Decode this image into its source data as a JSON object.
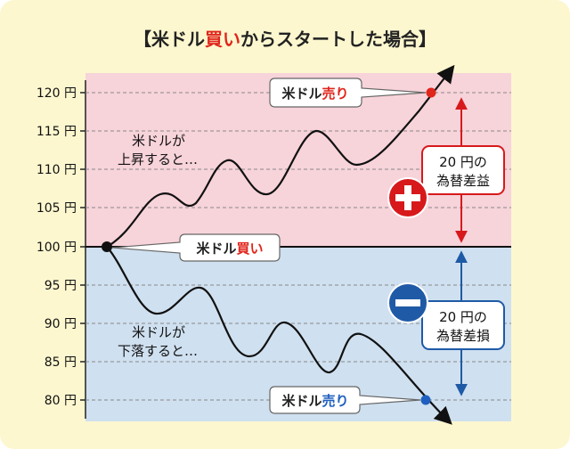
{
  "title": {
    "open": "【米ドル",
    "emph": "買い",
    "close": "からスタートした場合】"
  },
  "y_ticks": [
    {
      "value": 120,
      "label": "120 円"
    },
    {
      "value": 115,
      "label": "115 円"
    },
    {
      "value": 110,
      "label": "110 円"
    },
    {
      "value": 105,
      "label": "105 円"
    },
    {
      "value": 100,
      "label": "100 円"
    },
    {
      "value": 95,
      "label": "95 円"
    },
    {
      "value": 90,
      "label": "90 円"
    },
    {
      "value": 85,
      "label": "85 円"
    },
    {
      "value": 80,
      "label": "80 円"
    }
  ],
  "up_path": {
    "caption_line1": "米ドルが",
    "caption_line2": "上昇すると…"
  },
  "down_path": {
    "caption_line1": "米ドルが",
    "caption_line2": "下落すると…"
  },
  "callout_start": {
    "prefix": "米ドル",
    "emph": "買い"
  },
  "callout_sell_top": {
    "prefix": "米ドル",
    "emph": "売り"
  },
  "callout_sell_bottom": {
    "prefix": "米ドル",
    "emph": "売り"
  },
  "gain_box": {
    "line1": "20 円の",
    "line2": "為替差益"
  },
  "loss_box": {
    "line1": "20 円の",
    "line2": "為替差損"
  },
  "colors": {
    "upper_zone": "#f7d3da",
    "lower_zone": "#cfe0f0",
    "gain": "#d7191c",
    "loss": "#1f5aa6",
    "accent_red": "#e0251b",
    "accent_blue": "#1f5fbf"
  }
}
